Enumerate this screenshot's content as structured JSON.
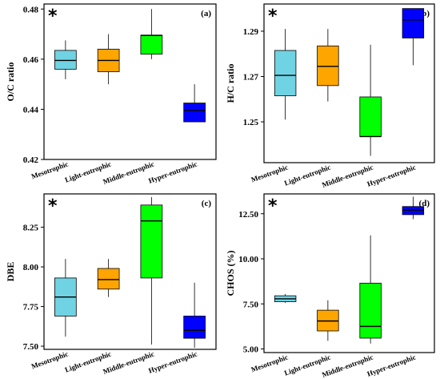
{
  "chart_data": [
    {
      "type": "box",
      "panel": "(a)",
      "marker": "*",
      "ylabel": "O/C ratio",
      "ylim": [
        0.42,
        0.482
      ],
      "yticks": [
        0.42,
        0.44,
        0.46,
        0.48
      ],
      "ytick_labels": [
        "0.42",
        "0.44",
        "0.46",
        "0.48"
      ],
      "categories": [
        "Mesotrophic",
        "Light-eutrophic",
        "Middle-eutrophic",
        "Hyper-eutrophic"
      ],
      "colors": [
        "#6FD3E3",
        "#FFA500",
        "#00FF00",
        "#0000FF"
      ],
      "boxes": [
        {
          "min": 0.452,
          "q1": 0.456,
          "median": 0.4595,
          "q3": 0.4635,
          "max": 0.4675
        },
        {
          "min": 0.45,
          "q1": 0.455,
          "median": 0.4595,
          "q3": 0.464,
          "max": 0.47
        },
        {
          "min": 0.46,
          "q1": 0.462,
          "median": 0.4695,
          "q3": 0.4695,
          "max": 0.48
        },
        {
          "min": 0.435,
          "q1": 0.435,
          "median": 0.4395,
          "q3": 0.4425,
          "max": 0.45
        }
      ]
    },
    {
      "type": "box",
      "panel": "(b)",
      "marker": "*",
      "ylabel": "H/C ratio",
      "ylim": [
        1.232,
        1.302
      ],
      "yticks": [
        1.25,
        1.27,
        1.29
      ],
      "ytick_labels": [
        "1.25",
        "1.27",
        "1.29"
      ],
      "categories": [
        "Mesotrophic",
        "Light-eutrophic",
        "Middle-eutrophic",
        "Hyper-eutrophic"
      ],
      "colors": [
        "#6FD3E3",
        "#FFA500",
        "#00FF00",
        "#0000FF"
      ],
      "boxes": [
        {
          "min": 1.251,
          "q1": 1.2615,
          "median": 1.2705,
          "q3": 1.2815,
          "max": 1.291
        },
        {
          "min": 1.259,
          "q1": 1.266,
          "median": 1.2745,
          "q3": 1.2835,
          "max": 1.291
        },
        {
          "min": 1.235,
          "q1": 1.2435,
          "median": 1.2435,
          "q3": 1.261,
          "max": 1.284
        },
        {
          "min": 1.275,
          "q1": 1.287,
          "median": 1.295,
          "q3": 1.3,
          "max": 1.3
        }
      ]
    },
    {
      "type": "box",
      "panel": "(c)",
      "marker": "*",
      "ylabel": "DBE",
      "ylim": [
        7.48,
        8.46
      ],
      "yticks": [
        7.5,
        7.75,
        8.0,
        8.25
      ],
      "ytick_labels": [
        "7.50",
        "7.75",
        "8.00",
        "8.25"
      ],
      "categories": [
        "Mesotrophic",
        "Light-eutrophic",
        "Middle-eutrophic",
        "Hyper-eutrophic"
      ],
      "colors": [
        "#6FD3E3",
        "#FFA500",
        "#00FF00",
        "#0000FF"
      ],
      "boxes": [
        {
          "min": 7.56,
          "q1": 7.69,
          "median": 7.81,
          "q3": 7.93,
          "max": 8.05
        },
        {
          "min": 7.81,
          "q1": 7.86,
          "median": 7.92,
          "q3": 7.99,
          "max": 8.05
        },
        {
          "min": 7.51,
          "q1": 7.93,
          "median": 8.29,
          "q3": 8.39,
          "max": 8.44
        },
        {
          "min": 7.49,
          "q1": 7.55,
          "median": 7.6,
          "q3": 7.69,
          "max": 7.9
        }
      ]
    },
    {
      "type": "box",
      "panel": "(d)",
      "marker": "*",
      "ylabel": "CHOS (%)",
      "ylim": [
        4.8,
        13.6
      ],
      "yticks": [
        5.0,
        7.5,
        10.0,
        12.5
      ],
      "ytick_labels": [
        "5.00",
        "7.50",
        "10.00",
        "12.50"
      ],
      "categories": [
        "Mesotrophic",
        "Light-eutrophic",
        "Middle-eutrophic",
        "Hyper-eutrophic"
      ],
      "colors": [
        "#6FD3E3",
        "#FFA500",
        "#00FF00",
        "#0000FF"
      ],
      "boxes": [
        {
          "min": 7.55,
          "q1": 7.62,
          "median": 7.78,
          "q3": 7.95,
          "max": 8.05
        },
        {
          "min": 5.45,
          "q1": 6.0,
          "median": 6.55,
          "q3": 7.15,
          "max": 7.7
        },
        {
          "min": 5.3,
          "q1": 5.6,
          "median": 6.25,
          "q3": 8.65,
          "max": 11.3
        },
        {
          "min": 12.2,
          "q1": 12.45,
          "median": 12.7,
          "q3": 12.9,
          "max": 13.45
        }
      ]
    }
  ]
}
